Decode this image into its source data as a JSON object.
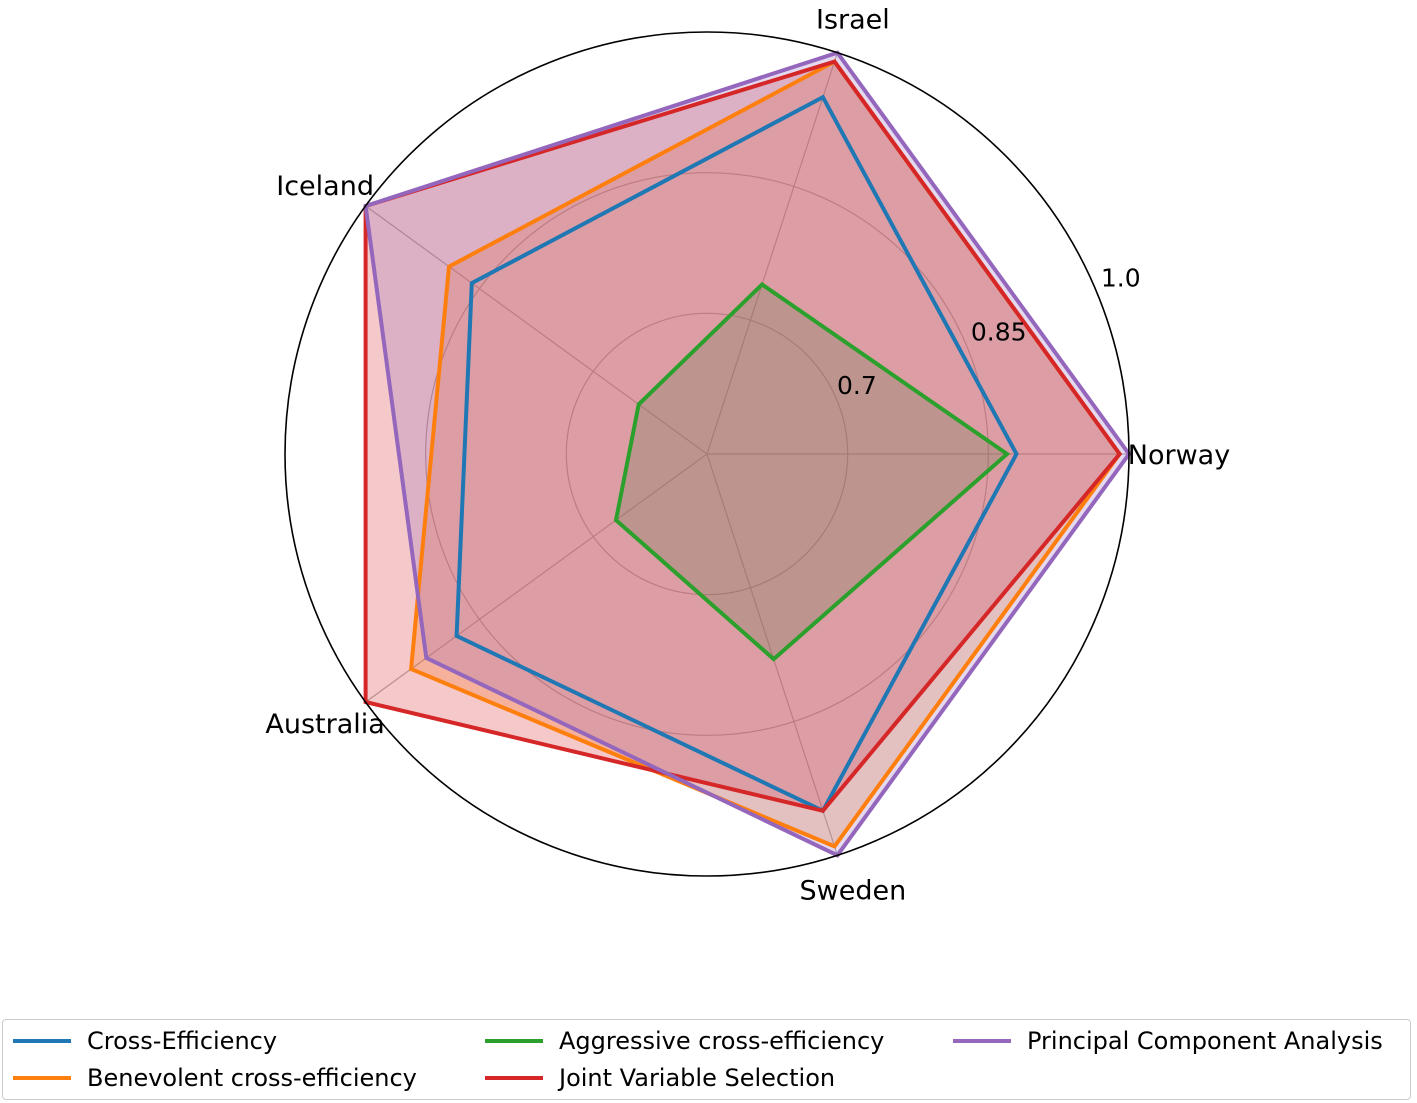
{
  "chart_data": {
    "type": "radar",
    "categories": [
      "Norway",
      "Israel",
      "Iceland",
      "Australia",
      "Sweden"
    ],
    "r_ticks": [
      0.7,
      0.85,
      1.0
    ],
    "r_tick_labels": [
      "0.7",
      "0.85",
      "1.0"
    ],
    "rlim": [
      0.55,
      1.0
    ],
    "grid": true,
    "legend_position": "bottom",
    "series": [
      {
        "name": "Cross-Efficiency",
        "color": "#1f77b4",
        "fill": false,
        "values": [
          0.88,
          0.95,
          0.86,
          0.88,
          0.95
        ]
      },
      {
        "name": "Benevolent cross-efficiency",
        "color": "#ff7f0e",
        "fill": true,
        "values": [
          0.99,
          0.99,
          0.89,
          0.94,
          0.99
        ]
      },
      {
        "name": "Aggressive cross-efficiency",
        "color": "#2ca02c",
        "fill": true,
        "values": [
          0.87,
          0.74,
          0.64,
          0.67,
          0.78
        ]
      },
      {
        "name": "Joint Variable Selection",
        "color": "#d62728",
        "fill": true,
        "values": [
          0.99,
          0.99,
          1.0,
          1.0,
          0.95
        ]
      },
      {
        "name": "Principal Component Analysis",
        "color": "#9467bd",
        "fill": true,
        "values": [
          1.0,
          1.0,
          1.0,
          0.92,
          1.0
        ]
      }
    ]
  }
}
